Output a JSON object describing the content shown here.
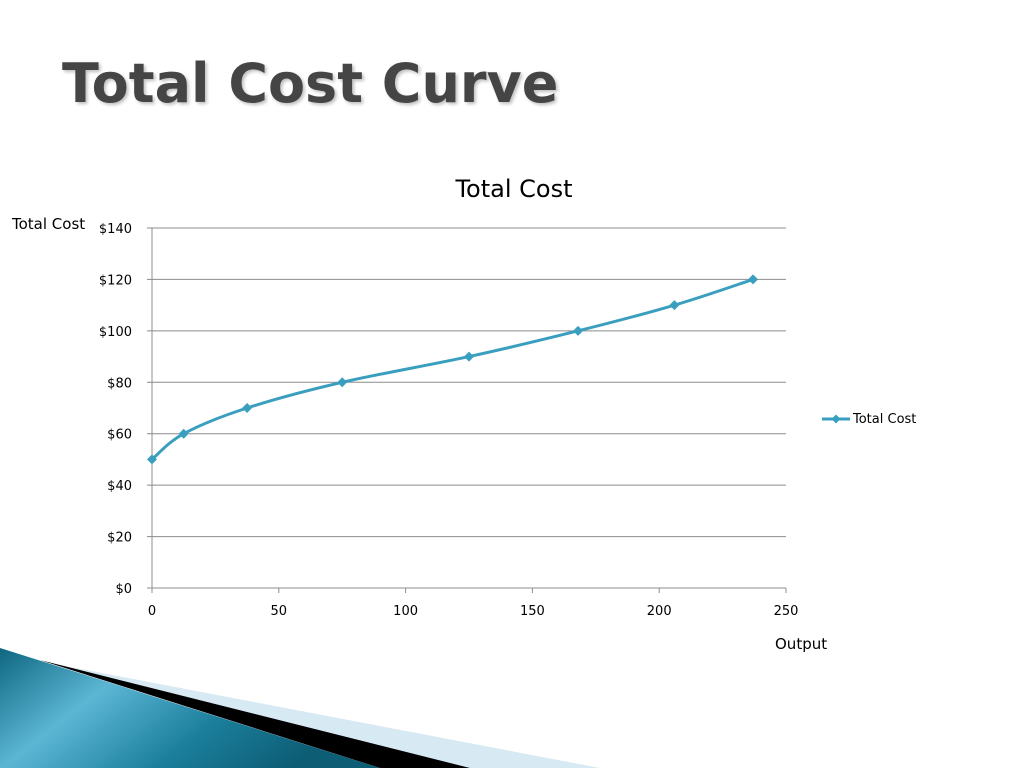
{
  "slide": {
    "title": "Total Cost Curve"
  },
  "chart_data": {
    "type": "scatter",
    "title": "Total Cost",
    "xlabel": "Output",
    "ylabel": "Total Cost",
    "xlim": [
      0,
      250
    ],
    "ylim": [
      0,
      140
    ],
    "x_ticks": [
      0,
      50,
      100,
      150,
      200,
      250
    ],
    "y_ticks": [
      0,
      20,
      40,
      60,
      80,
      100,
      120,
      140
    ],
    "y_tick_labels": [
      "$0",
      "$20",
      "$40",
      "$60",
      "$80",
      "$100",
      "$120",
      "$140"
    ],
    "x_tick_labels": [
      "0",
      "50",
      "100",
      "150",
      "200",
      "250"
    ],
    "grid": "horizontal",
    "smooth": true,
    "legend": "right",
    "series": [
      {
        "name": "Total Cost",
        "color": "#3a9fbf",
        "marker": "diamond",
        "x": [
          0,
          12.5,
          37.5,
          75,
          125,
          168,
          206,
          237
        ],
        "y": [
          50,
          60,
          70,
          80,
          90,
          100,
          110,
          120
        ]
      }
    ]
  }
}
